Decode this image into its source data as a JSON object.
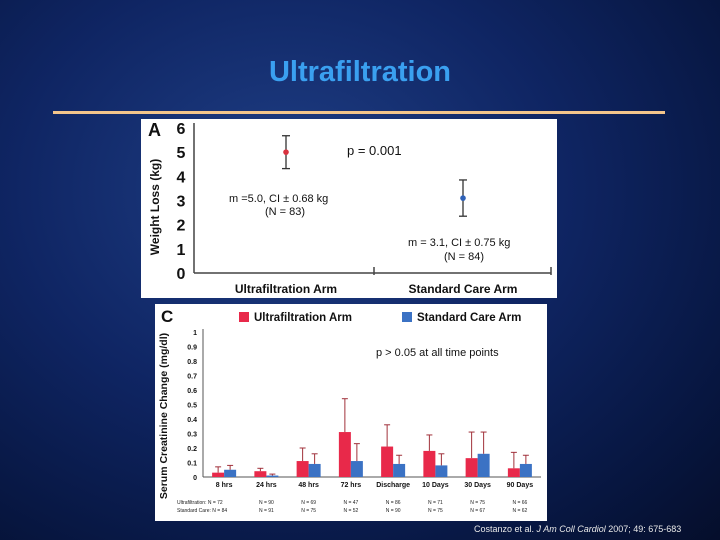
{
  "slide": {
    "title": "Ultrafiltration",
    "citation": {
      "prefix": "Costanzo et al. ",
      "journal": "J Am Coll Cardiol",
      "suffix": " 2007; 49: 675-683"
    }
  },
  "colors": {
    "title": "#3aa0f0",
    "rule": "#f3c58b",
    "ultrafiltration": "#e8294a",
    "standard_care": "#3b72c4",
    "errorbar": "#b0303c"
  },
  "chart_data": [
    {
      "panel_letter": "A",
      "type": "scatter",
      "ylabel": "Weight Loss (kg)",
      "ylim": [
        0,
        6
      ],
      "yticks": [
        "0",
        "1",
        "2",
        "3",
        "4",
        "5",
        "6"
      ],
      "categories": [
        "Ultrafiltration Arm",
        "Standard Care Arm"
      ],
      "points": [
        {
          "category": "Ultrafiltration Arm",
          "mean": 5.0,
          "ci": 0.68,
          "color": "#d9333f",
          "annotation_line1": "m =5.0, CI ± 0.68 kg",
          "annotation_line2": "(N = 83)"
        },
        {
          "category": "Standard Care Arm",
          "mean": 3.1,
          "ci": 0.75,
          "color": "#2f62b8",
          "annotation_line1": "m = 3.1, CI ± 0.75 kg",
          "annotation_line2": "(N = 84)"
        }
      ],
      "pvalue": "p = 0.001",
      "grid": false
    },
    {
      "panel_letter": "C",
      "type": "bar",
      "ylabel": "Serum Creatinine Change (mg/dl)",
      "ylim": [
        0,
        1
      ],
      "yticks": [
        "0",
        "0.1",
        "0.2",
        "0.3",
        "0.4",
        "0.5",
        "0.6",
        "0.7",
        "0.8",
        "0.9",
        "1"
      ],
      "categories": [
        "8 hrs",
        "24 hrs",
        "48 hrs",
        "72 hrs",
        "Discharge",
        "10 Days",
        "30 Days",
        "90 Days"
      ],
      "series": [
        {
          "name": "Ultrafiltration Arm",
          "color": "#e8294a",
          "values": [
            0.03,
            0.04,
            0.11,
            0.31,
            0.21,
            0.18,
            0.13,
            0.06
          ],
          "errors": [
            0.04,
            0.02,
            0.09,
            0.23,
            0.15,
            0.11,
            0.18,
            0.11
          ]
        },
        {
          "name": "Standard Care Arm",
          "color": "#3b72c4",
          "values": [
            0.05,
            0.01,
            0.09,
            0.11,
            0.09,
            0.08,
            0.16,
            0.09
          ],
          "errors": [
            0.03,
            0.01,
            0.07,
            0.12,
            0.06,
            0.08,
            0.15,
            0.06
          ]
        }
      ],
      "pvalue": "p > 0.05 at all time points",
      "n_rows": [
        {
          "label": "Ultrafiltration: N = 72",
          "values": [
            "N = 90",
            "N = 69",
            "N = 47",
            "N = 86",
            "N = 71",
            "N = 75",
            "N = 66"
          ]
        },
        {
          "label": "Standard Care: N = 84",
          "values": [
            "N = 91",
            "N = 75",
            "N = 52",
            "N = 90",
            "N = 75",
            "N = 67",
            "N = 62"
          ]
        }
      ],
      "legend_position": "top",
      "grid": false
    }
  ]
}
